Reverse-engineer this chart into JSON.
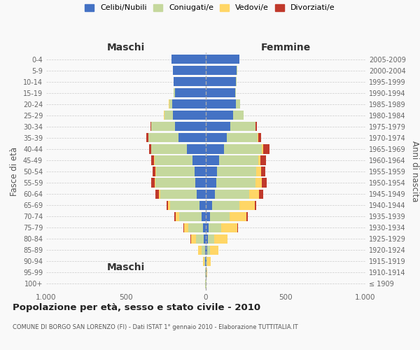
{
  "age_groups": [
    "100+",
    "95-99",
    "90-94",
    "85-89",
    "80-84",
    "75-79",
    "70-74",
    "65-69",
    "60-64",
    "55-59",
    "50-54",
    "45-49",
    "40-44",
    "35-39",
    "30-34",
    "25-29",
    "20-24",
    "15-19",
    "10-14",
    "5-9",
    "0-4"
  ],
  "birth_years": [
    "≤ 1909",
    "1910-1914",
    "1915-1919",
    "1920-1924",
    "1925-1929",
    "1930-1934",
    "1935-1939",
    "1940-1944",
    "1945-1949",
    "1950-1954",
    "1955-1959",
    "1960-1964",
    "1965-1969",
    "1970-1974",
    "1975-1979",
    "1980-1984",
    "1985-1989",
    "1990-1994",
    "1995-1999",
    "2000-2004",
    "2005-2009"
  ],
  "maschi": {
    "celibi": [
      2,
      2,
      4,
      5,
      12,
      18,
      28,
      38,
      55,
      65,
      70,
      85,
      120,
      170,
      195,
      205,
      210,
      195,
      200,
      205,
      215
    ],
    "coniugati": [
      1,
      2,
      6,
      22,
      50,
      90,
      140,
      185,
      230,
      250,
      240,
      235,
      220,
      190,
      145,
      55,
      20,
      5,
      2,
      0,
      0
    ],
    "vedovi": [
      1,
      2,
      8,
      22,
      32,
      28,
      22,
      14,
      8,
      5,
      4,
      3,
      2,
      1,
      1,
      1,
      1,
      0,
      0,
      0,
      0
    ],
    "divorziati": [
      0,
      0,
      0,
      0,
      2,
      5,
      8,
      10,
      22,
      22,
      20,
      18,
      15,
      12,
      5,
      2,
      1,
      0,
      0,
      0,
      0
    ]
  },
  "femmine": {
    "nubili": [
      2,
      3,
      5,
      10,
      12,
      18,
      25,
      40,
      55,
      65,
      70,
      85,
      115,
      130,
      155,
      170,
      190,
      185,
      190,
      195,
      210
    ],
    "coniugate": [
      1,
      2,
      5,
      15,
      42,
      78,
      125,
      170,
      215,
      245,
      245,
      245,
      238,
      195,
      155,
      65,
      25,
      5,
      2,
      1,
      0
    ],
    "vedove": [
      2,
      5,
      22,
      55,
      80,
      100,
      105,
      98,
      62,
      42,
      30,
      12,
      8,
      5,
      2,
      1,
      1,
      0,
      0,
      0,
      0
    ],
    "divorziate": [
      0,
      0,
      0,
      1,
      2,
      5,
      8,
      8,
      28,
      30,
      28,
      35,
      38,
      15,
      8,
      2,
      1,
      0,
      0,
      0,
      0
    ]
  },
  "colors": {
    "celibi": "#4472C4",
    "coniugati": "#C5D89D",
    "vedovi": "#FFD666",
    "divorziati": "#C0392B"
  },
  "xlim": 1000,
  "title": "Popolazione per età, sesso e stato civile - 2010",
  "subtitle": "COMUNE DI BORGO SAN LORENZO (FI) - Dati ISTAT 1° gennaio 2010 - Elaborazione TUTTITALIA.IT",
  "ylabel_left": "Fasce di età",
  "ylabel_right": "Anni di nascita",
  "xlabel_maschi": "Maschi",
  "xlabel_femmine": "Femmine"
}
